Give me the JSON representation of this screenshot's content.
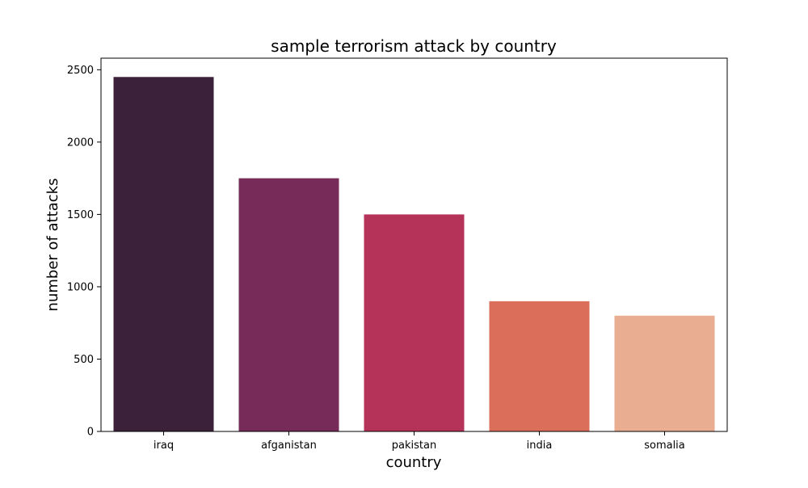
{
  "chart_data": {
    "type": "bar",
    "title": "sample terrorism attack by country",
    "xlabel": "country",
    "ylabel": "number of attacks",
    "categories": [
      "iraq",
      "afganistan",
      "pakistan",
      "india",
      "somalia"
    ],
    "values": [
      2450,
      1750,
      1500,
      900,
      800
    ],
    "colors": [
      "#3b2139",
      "#772b59",
      "#b53258",
      "#db6e5b",
      "#e9ae91"
    ],
    "ylim": [
      0,
      2580
    ],
    "yticks": [
      0,
      500,
      1000,
      1500,
      2000,
      2500
    ],
    "grid": false,
    "legend": false
  }
}
